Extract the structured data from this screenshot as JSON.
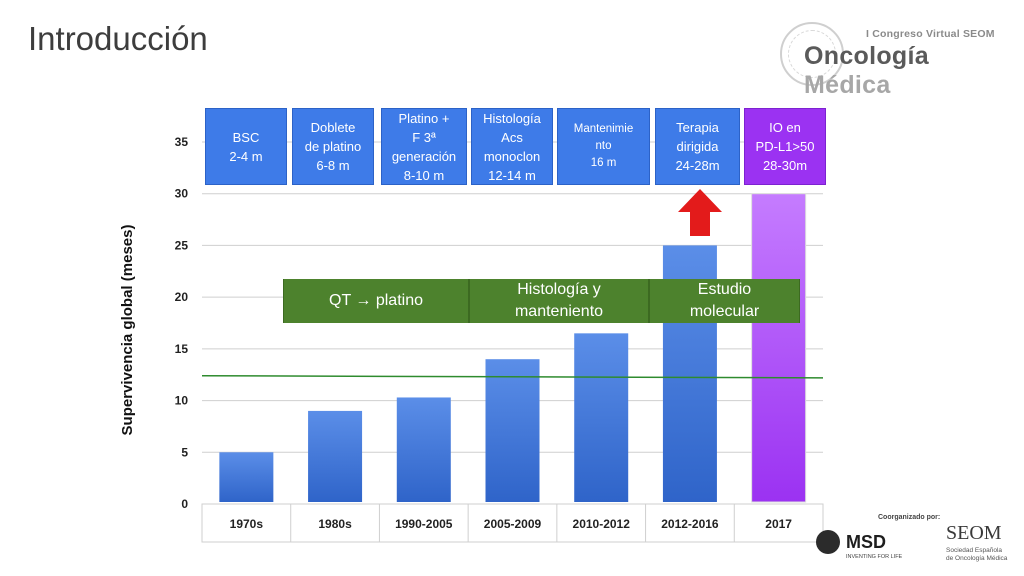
{
  "slide": {
    "title": "Introducción",
    "logo": {
      "subtitle": "I Congreso Virtual SEOM",
      "name_part1": "Oncología",
      "name_part2": " Médica"
    },
    "coorganized_label": "Coorganizado por:",
    "msd": {
      "name": "MSD",
      "tagline": "INVENTING FOR LIFE"
    },
    "seom": {
      "name": "SEOM",
      "line1": "Sociedad Española",
      "line2": "de Oncología Médica"
    }
  },
  "colors": {
    "bar_blue": "#2f64c9",
    "bar_purple": "#9b32f2",
    "box_blue": "#3e7be8",
    "era_green": "#4d822d",
    "arrow_red": "#e31b1b",
    "ref_line": "#2e8b2e"
  },
  "icons": {
    "arrow": "arrow-up-icon"
  },
  "annotations": {
    "top_boxes": [
      {
        "text": "BSC\n2-4 m"
      },
      {
        "text": "Doblete\nde platino\n6-8 m"
      },
      {
        "text": "Platino +\nF 3ª\ngeneración\n8-10 m"
      },
      {
        "text": "Histología\nAcs\nmonoclon\n12-14 m"
      },
      {
        "text": "Mantenimie\nnto\n16 m"
      },
      {
        "text": "Terapia\ndirigida\n24-28m"
      },
      {
        "text": "IO en\nPD-L1>50\n28-30m"
      }
    ],
    "eras": [
      {
        "text": "QT → platino"
      },
      {
        "text": "Histología y\nmanteniento"
      },
      {
        "text": "Estudio\nmolecular"
      }
    ]
  },
  "chart_data": {
    "type": "bar",
    "categories": [
      "1970s",
      "1980s",
      "1990-2005",
      "2005-2009",
      "2010-2012",
      "2012-2016",
      "2017"
    ],
    "values": [
      5,
      9,
      10.3,
      14,
      16.5,
      25,
      30
    ],
    "ylabel": "Supervivencia global (meses)",
    "ylim": [
      0,
      35
    ],
    "yticks": [
      0,
      5,
      10,
      15,
      20,
      25,
      30,
      35
    ],
    "grid": true,
    "reference_line_y": [
      12.4,
      12.2
    ]
  }
}
